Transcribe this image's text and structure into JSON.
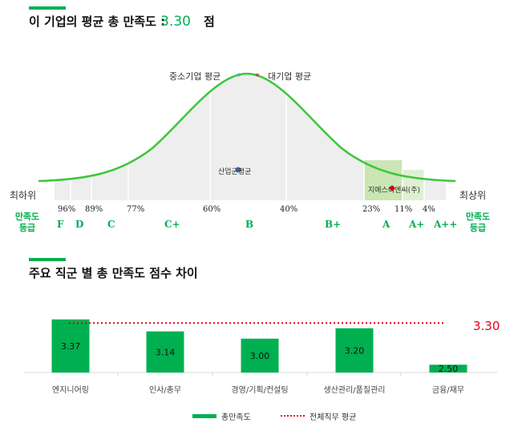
{
  "section1": {
    "title": "이 기업의 평균 총 만족도 :",
    "score": "3.30",
    "unit": "점"
  },
  "legend_top": {
    "sme_label": "중소기업 평균",
    "large_label": "대기업 평균"
  },
  "curve": {
    "industry_avg_label": "산업군평균",
    "company_label": "지에스이엔씨(주)",
    "left_end": "최하위",
    "right_end": "최상위",
    "left_grade_title": "만족도\n등급",
    "right_grade_title": "만족도\n등급",
    "percentiles": [
      "96%",
      "89%",
      "77%",
      "60%",
      "40%",
      "23%",
      "11%",
      "4%"
    ],
    "grades": [
      "F",
      "D",
      "C",
      "C+",
      "B",
      "B+",
      "A",
      "A+",
      "A++"
    ]
  },
  "section2": {
    "title": "주요 직군 별 총 만족도 점수 차이",
    "avg_value_label": "3.30"
  },
  "chart_data": {
    "type": "bar",
    "categories": [
      "엔지니어링",
      "인사/총무",
      "경영/기획/컨설팅",
      "생산관리/품질관리",
      "금융/재무"
    ],
    "series": [
      {
        "name": "총만족도",
        "values": [
          3.37,
          3.14,
          3.0,
          3.2,
          2.5
        ]
      }
    ],
    "value_labels": [
      "3.37",
      "3.14",
      "3.00",
      "3.20",
      "2.50"
    ],
    "reference_line": {
      "name": "전체직무 평균",
      "value": 3.3
    },
    "colors": {
      "bar": "#00b050",
      "reference": "#e3001b",
      "curve": "#3cc63c",
      "accent": "#00b050"
    },
    "legend_position": "bottom"
  },
  "legend_bottom": {
    "bar_label": "총만족도",
    "line_label": "전체직무 평균"
  }
}
